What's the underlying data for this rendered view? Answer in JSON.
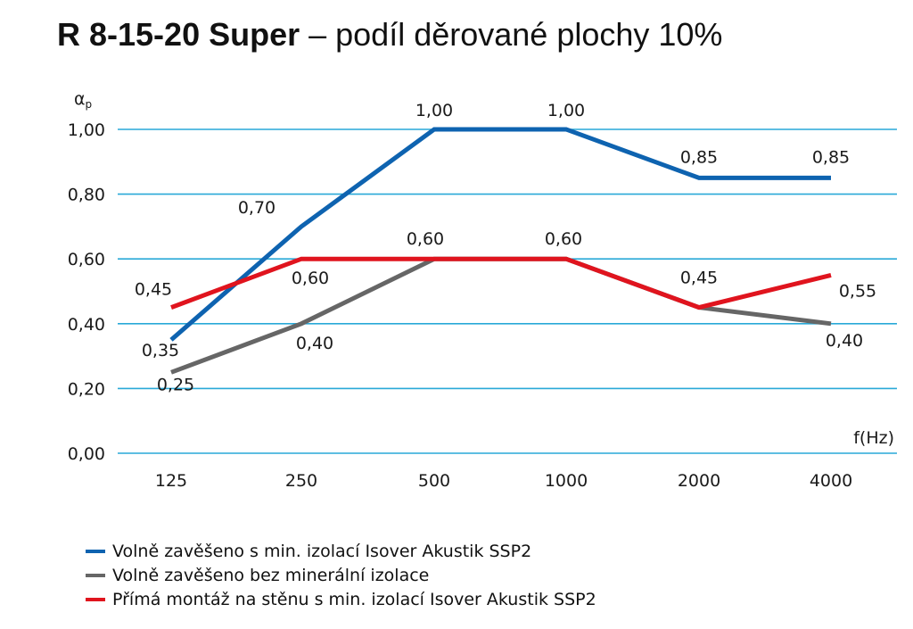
{
  "title": {
    "main": "R 8-15-20 Super",
    "rest": " – podíl děrované plochy 10%"
  },
  "chart_data": {
    "type": "line",
    "categories": [
      "125",
      "250",
      "500",
      "1000",
      "2000",
      "4000"
    ],
    "y_ticks": [
      "0,00",
      "0,20",
      "0,40",
      "0,60",
      "0,80",
      "1,00"
    ],
    "ylim": [
      0,
      1
    ],
    "ylabel": "αp",
    "xlabel": "f(Hz)",
    "grid": true,
    "grid_color": "#29a9d8",
    "legend_position": "bottom",
    "series": [
      {
        "name": "Volně zavěšeno s min. izolací Isover Akustik SSP2",
        "color": "#0e63b0",
        "values": [
          0.35,
          0.7,
          1.0,
          1.0,
          0.85,
          0.85
        ],
        "labels": [
          "0,35",
          "0,70",
          "1,00",
          "1,00",
          "0,85",
          "0,85"
        ]
      },
      {
        "name": "Volně zavěšeno bez minerální izolace",
        "color": "#666666",
        "values": [
          0.25,
          0.4,
          0.6,
          0.6,
          0.45,
          0.4
        ],
        "labels": [
          "0,25",
          "0,40",
          "",
          "",
          "",
          "0,40"
        ]
      },
      {
        "name": "Přímá montáž na stěnu s min. izolací Isover Akustik SSP2",
        "color": "#e0141e",
        "values": [
          0.45,
          0.6,
          0.6,
          0.6,
          0.45,
          0.55
        ],
        "labels": [
          "0,45",
          "0,60",
          "0,60",
          "0,60",
          "0,45",
          "0,55"
        ]
      }
    ]
  }
}
